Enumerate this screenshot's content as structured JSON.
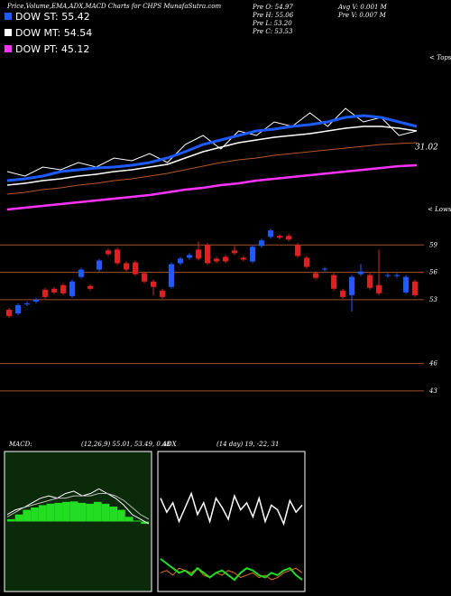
{
  "header": {
    "title": "Price,Volume,EMA,ADX,MACD Charts for CHPS MunafaSutra.com",
    "legend": [
      {
        "label": "DOW ST: 55.42",
        "color": "#1e5bff"
      },
      {
        "label": "DOW MT: 54.54",
        "color": "#ffffff"
      },
      {
        "label": "DOW PT: 45.12",
        "color": "#ff33ff"
      }
    ],
    "info": [
      "Pre O: 54.97",
      "Pre H: 55.06",
      "Pre L: 53.20",
      "Pre C: 53.53",
      "Avg V: 0.001 M",
      "Pre V: 0.007 M"
    ]
  },
  "chart_data": [
    {
      "type": "line",
      "tops_label": "< Tops",
      "lows_label": "< Lows",
      "annotation": "31.02",
      "ylim": [
        0,
        175
      ],
      "series": [
        {
          "name": "price",
          "color": "#ffffff",
          "width": 1,
          "values": [
            45,
            40,
            50,
            47,
            55,
            50,
            60,
            57,
            65,
            55,
            75,
            85,
            70,
            90,
            85,
            100,
            95,
            110,
            95,
            115,
            100,
            105,
            85,
            90
          ]
        },
        {
          "name": "brown",
          "color": "#b5562a",
          "width": 1,
          "values": [
            20,
            22,
            25,
            27,
            30,
            32,
            35,
            37,
            40,
            43,
            47,
            51,
            55,
            58,
            60,
            63,
            65,
            67,
            69,
            71,
            73,
            75,
            76,
            77
          ]
        },
        {
          "name": "MT",
          "color": "#ffffff",
          "width": 1.5,
          "values": [
            30,
            32,
            35,
            37,
            40,
            42,
            45,
            47,
            50,
            53,
            60,
            67,
            72,
            77,
            80,
            83,
            85,
            87,
            90,
            93,
            95,
            95,
            93,
            90
          ]
        },
        {
          "name": "ST",
          "color": "#1e5bff",
          "width": 3,
          "values": [
            35,
            37,
            40,
            45,
            47,
            49,
            50,
            52,
            55,
            60,
            67,
            75,
            80,
            85,
            90,
            92,
            95,
            97,
            100,
            105,
            107,
            105,
            100,
            95
          ]
        },
        {
          "name": "PT",
          "color": "#ff33ff",
          "width": 2.5,
          "values": [
            3,
            5,
            7,
            9,
            11,
            13,
            15,
            17,
            19,
            22,
            25,
            27,
            30,
            32,
            35,
            37,
            39,
            41,
            43,
            45,
            47,
            49,
            51,
            52
          ]
        }
      ]
    },
    {
      "type": "candlestick",
      "ylim": [
        42,
        62
      ],
      "yticks": [
        59,
        56,
        53,
        46,
        43
      ],
      "grid": true,
      "grid_color": "#a0522d",
      "up_color": "#1e5bff",
      "down_color": "#e02020",
      "open": [
        51.9,
        51.5,
        52.5,
        52.8,
        54.1,
        54.2,
        54.6,
        53.4,
        55.5,
        54.5,
        56.3,
        58.4,
        58.5,
        57.0,
        57.1,
        55.9,
        55.0,
        54.0,
        54.4,
        57.0,
        57.6,
        58.5,
        59.0,
        57.5,
        57.7,
        58.4,
        57.6,
        57.2,
        58.9,
        59.9,
        60.0,
        60.0,
        59.0,
        57.6,
        55.9,
        56.3,
        55.7,
        54.0,
        53.5,
        55.8,
        55.7,
        54.6,
        55.6,
        55.6,
        53.8,
        55.0
      ],
      "high": [
        52.1,
        52.6,
        52.8,
        53.2,
        54.3,
        54.4,
        54.8,
        55.2,
        56.5,
        54.7,
        57.5,
        58.6,
        58.7,
        57.2,
        57.3,
        56.1,
        55.2,
        54.2,
        57.1,
        57.7,
        58.1,
        59.4,
        59.2,
        57.7,
        57.9,
        58.9,
        57.8,
        59.0,
        59.7,
        60.8,
        60.2,
        60.2,
        59.2,
        57.8,
        56.1,
        56.6,
        55.9,
        54.2,
        55.7,
        56.9,
        55.9,
        58.5,
        55.9,
        55.9,
        55.7,
        55.2
      ],
      "low": [
        51.0,
        51.3,
        52.3,
        52.6,
        53.1,
        53.6,
        53.5,
        53.2,
        55.3,
        54.0,
        56.1,
        57.8,
        56.8,
        56.1,
        55.6,
        54.8,
        53.5,
        53.1,
        54.2,
        56.8,
        57.4,
        57.3,
        56.8,
        57.0,
        57.0,
        57.9,
        57.2,
        57.0,
        58.7,
        59.7,
        59.6,
        59.4,
        57.6,
        56.4,
        55.2,
        56.1,
        54.0,
        53.1,
        51.7,
        55.6,
        54.1,
        53.5,
        55.4,
        55.4,
        53.6,
        53.3
      ],
      "close": [
        51.2,
        52.4,
        52.6,
        53.0,
        53.3,
        53.8,
        53.7,
        55.0,
        56.3,
        54.2,
        57.3,
        58.0,
        57.0,
        56.3,
        55.8,
        55.0,
        54.4,
        53.3,
        56.9,
        57.5,
        57.9,
        57.5,
        57.0,
        57.2,
        57.2,
        58.1,
        57.4,
        58.8,
        59.5,
        60.6,
        59.8,
        59.6,
        57.8,
        56.6,
        55.4,
        56.4,
        54.2,
        53.3,
        55.5,
        56.1,
        54.3,
        53.7,
        55.7,
        55.7,
        55.5,
        53.5
      ]
    },
    {
      "type": "macd",
      "title": "MACD:",
      "subtitle": "(12,26,9) 55.01, 53.49, 0.48",
      "ylim": [
        -15,
        15
      ],
      "bar_color": "#22dd22",
      "histogram": [
        0.5,
        1.5,
        2.5,
        3,
        3.5,
        3.8,
        4,
        4.2,
        4.3,
        4,
        3.8,
        4.2,
        3.8,
        3.2,
        2.5,
        1,
        0.2,
        -0.5
      ],
      "series": [
        {
          "name": "macd",
          "color": "#ffffff",
          "width": 1,
          "values": [
            1.5,
            2.5,
            3,
            4,
            5,
            5.5,
            5,
            6,
            6.5,
            5.5,
            6,
            7,
            6,
            5,
            3.5,
            1.5,
            0.5,
            -0.5
          ]
        },
        {
          "name": "signal",
          "color": "#bbbbbb",
          "width": 1,
          "values": [
            1,
            2,
            3,
            3.5,
            4,
            4.5,
            5,
            5,
            5.5,
            5.5,
            5.5,
            6,
            6,
            5.5,
            4.5,
            3,
            1.5,
            0.5
          ]
        }
      ]
    },
    {
      "type": "line",
      "title": "ADX",
      "subtitle": "(14 day) 19, -22, 31",
      "ylim": [
        0,
        60
      ],
      "series": [
        {
          "name": "plus",
          "color": "#ffffff",
          "width": 1.5,
          "values": [
            40,
            34,
            38,
            30,
            36,
            42,
            33,
            38,
            30,
            40,
            36,
            31,
            41,
            35,
            38,
            32,
            40,
            30,
            37,
            35,
            29,
            39,
            34,
            37
          ]
        },
        {
          "name": "orange",
          "color": "#e07020",
          "width": 1,
          "values": [
            8,
            9,
            7,
            10,
            9,
            8,
            10,
            7,
            6,
            8,
            7,
            9,
            8,
            6,
            7,
            8,
            6,
            7,
            5,
            6,
            8,
            9,
            10,
            8
          ]
        },
        {
          "name": "green",
          "color": "#22dd22",
          "width": 2,
          "values": [
            14,
            12,
            10,
            8,
            9,
            7,
            10,
            8,
            6,
            8,
            9,
            7,
            5,
            8,
            10,
            9,
            7,
            6,
            8,
            7,
            9,
            10,
            7,
            5
          ]
        }
      ]
    }
  ]
}
